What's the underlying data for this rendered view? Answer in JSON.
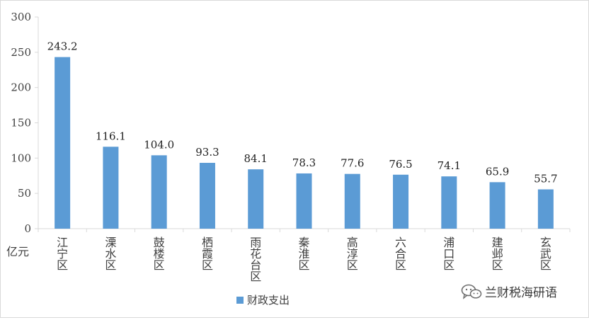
{
  "chart_data": {
    "type": "bar",
    "title": "",
    "xlabel": "",
    "ylabel": "亿元",
    "ylim": [
      0,
      300
    ],
    "yticks": [
      0,
      50,
      100,
      150,
      200,
      250,
      300
    ],
    "categories": [
      "江宁区",
      "溧水区",
      "鼓楼区",
      "栖霞区",
      "雨花台区",
      "秦淮区",
      "高淳区",
      "六合区",
      "浦口区",
      "建邺区",
      "玄武区"
    ],
    "series": [
      {
        "name": "财政支出",
        "values": [
          243.2,
          116.1,
          104.0,
          93.3,
          84.1,
          78.3,
          77.6,
          76.5,
          74.1,
          65.9,
          55.7
        ],
        "color": "#5b9bd5"
      }
    ],
    "grid": false,
    "legend_position": "bottom"
  },
  "watermark": {
    "text": "兰财税海研语",
    "icon": "wechat-icon"
  }
}
